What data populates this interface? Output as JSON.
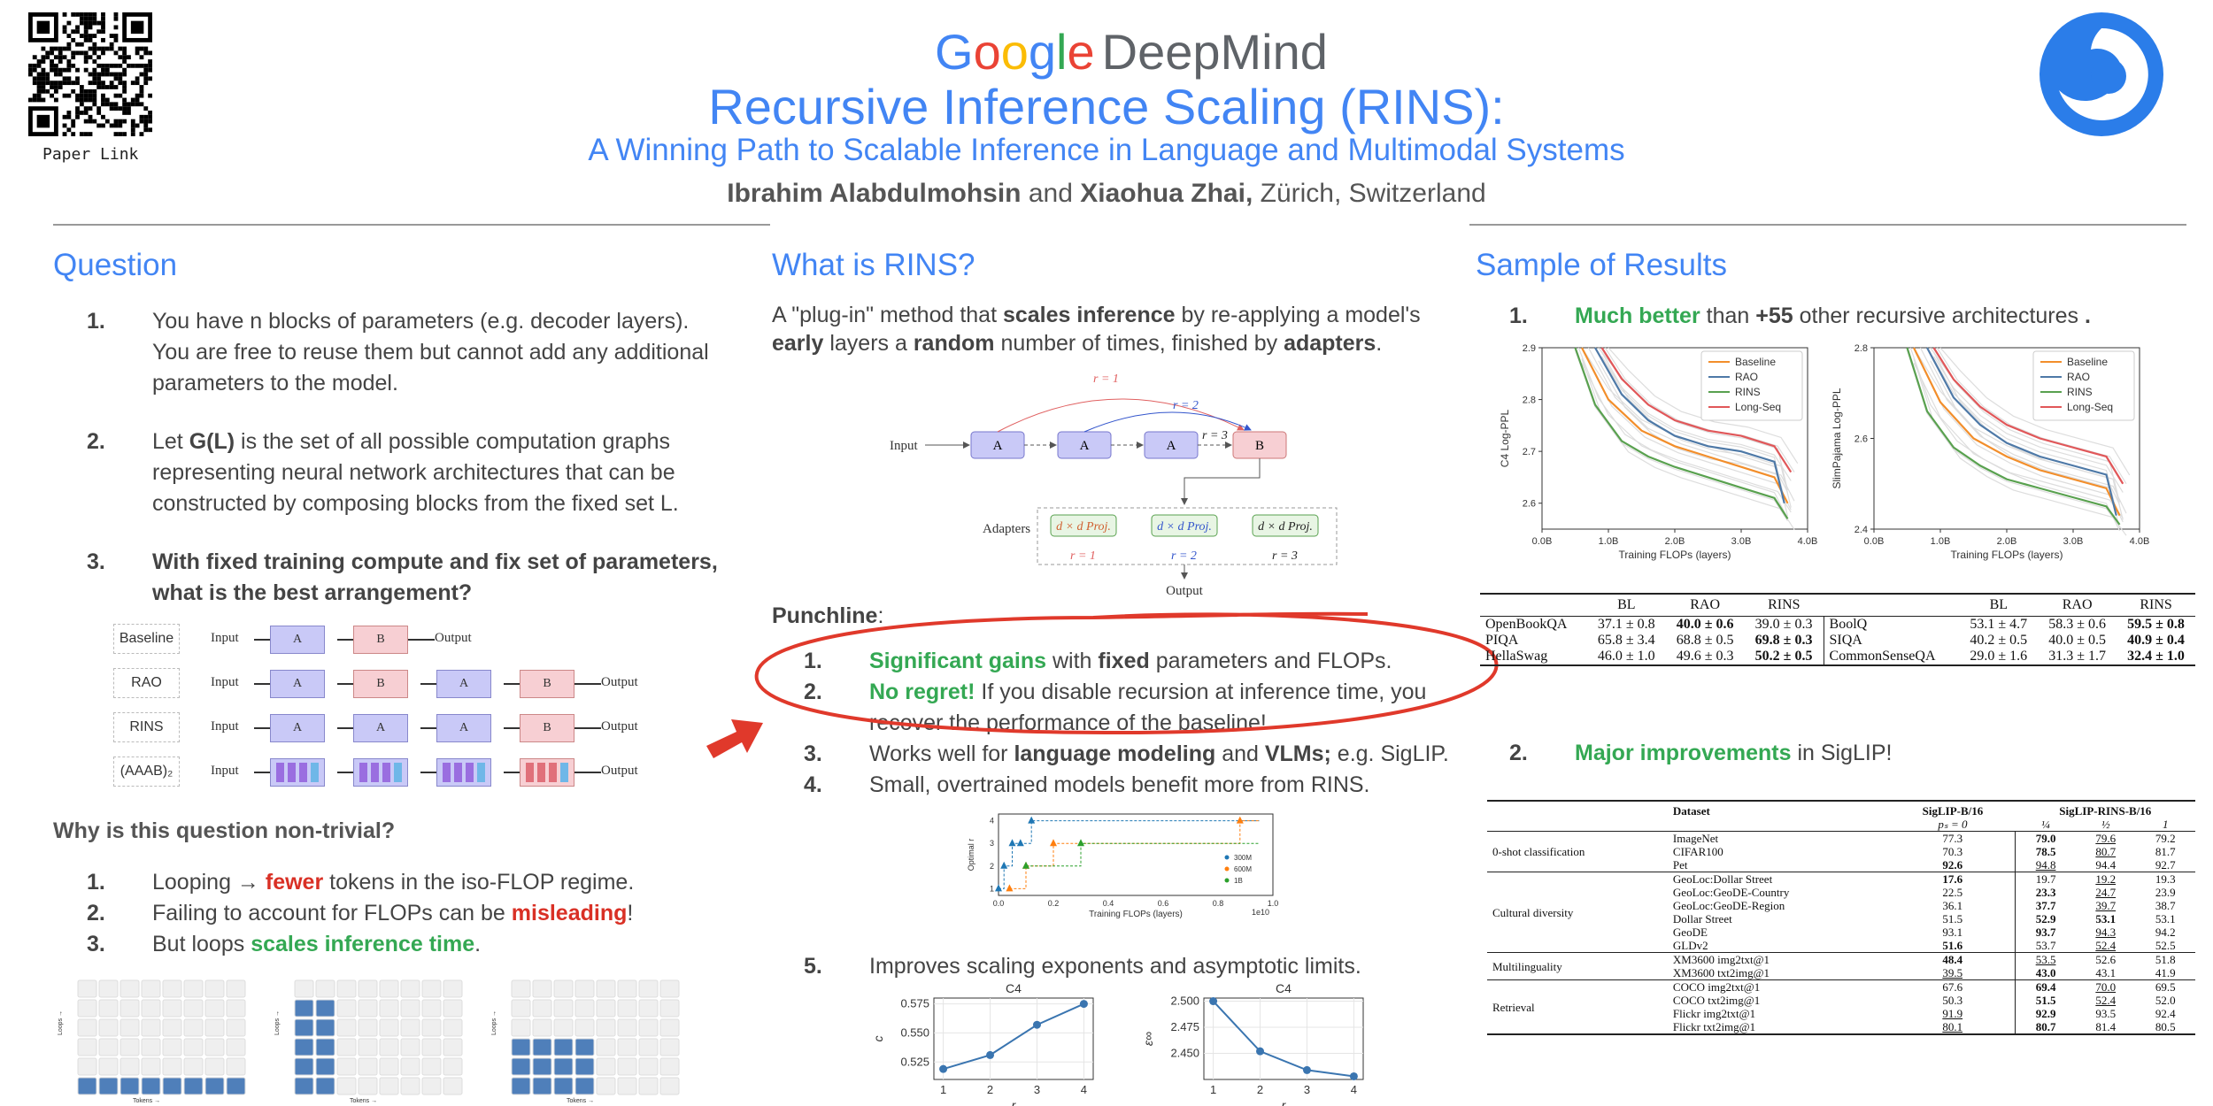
{
  "header": {
    "logo_google": [
      "G",
      "o",
      "o",
      "g",
      "l",
      "e"
    ],
    "logo_google_colors": [
      "#4285f4",
      "#ea4335",
      "#fbbc05",
      "#4285f4",
      "#34a853",
      "#ea4335"
    ],
    "logo_deepmind": "DeepMind",
    "title": "Recursive Inference Scaling (RINS):",
    "subtitle": "A Winning Path to Scalable Inference in Language and Multimodal Systems",
    "author1": "Ibrahim Alabdulmohsin",
    "and": " and ",
    "author2": "Xiaohua Zhai,",
    "location": " Zürich, Switzerland",
    "qr_label": "Paper Link"
  },
  "question": {
    "heading": "Question",
    "items": [
      {
        "n": "1.",
        "text": "You have n blocks of parameters (e.g. decoder layers). You are free to reuse them but cannot add any additional parameters to the model."
      },
      {
        "n": "2.",
        "pre": "Let ",
        "bold": "G(L)",
        "post": " is the set of all possible computation graphs representing neural network architectures that can be constructed by composing blocks from the fixed set L."
      },
      {
        "n": "3.",
        "bold": "With fixed training compute and fix set of parameters, what is the best arrangement?"
      }
    ],
    "arch_rows": [
      {
        "label": "Baseline",
        "input": "Input",
        "blocks": [
          "A",
          "B"
        ],
        "output": "Output"
      },
      {
        "label": "RAO",
        "input": "Input",
        "blocks": [
          "A",
          "B",
          "A",
          "B"
        ],
        "output": "Output"
      },
      {
        "label": "RINS",
        "input": "Input",
        "blocks": [
          "A",
          "A",
          "A",
          "B"
        ],
        "output": "Output"
      },
      {
        "label": "(AAAB)₂",
        "input": "Input",
        "blocks": [
          "AAAA",
          "AAAA",
          "AAAA",
          "BBBB"
        ],
        "output": "Output"
      }
    ],
    "why_heading": "Why is this question non-trivial?",
    "why_items": [
      {
        "n": "1.",
        "pre": "Looping → ",
        "red": "fewer",
        "post": " tokens in the iso-FLOP regime."
      },
      {
        "n": "2.",
        "pre": "Failing to account for FLOPs can be ",
        "red": "misleading",
        "post": "!"
      },
      {
        "n": "3.",
        "pre": "But loops ",
        "green": "scales inference time",
        "post": "."
      }
    ],
    "grid_axis_y": "Loops →",
    "grid_axis_x": "Tokens →"
  },
  "rins": {
    "heading": "What is RINS?",
    "intro_parts": [
      "A \"plug-in\" method that ",
      "scales inference",
      " by re-applying a model's ",
      "early",
      " layers a ",
      "random",
      " number of times, finished by ",
      "adapters",
      "."
    ],
    "diagram": {
      "input": "Input",
      "output": "Output",
      "adapters": "Adapters",
      "r1": "r = 1",
      "r2": "r = 2",
      "r3": "r = 3",
      "proj": "d × d Proj.",
      "blockA": "A",
      "blockB": "B"
    },
    "punchline": "Punchline",
    "items": [
      {
        "n": "1.",
        "parts": [
          {
            "g": "Significant gains"
          },
          {
            "t": " with "
          },
          {
            "b": "fixed"
          },
          {
            "t": " parameters and FLOPs."
          }
        ]
      },
      {
        "n": "2.",
        "parts": [
          {
            "g": "No regret!"
          },
          {
            "t": " If you disable recursion at inference time, you recover the performance of the baseline!"
          }
        ]
      },
      {
        "n": "3.",
        "parts": [
          {
            "t": "Works well for "
          },
          {
            "b": "language modeling"
          },
          {
            "t": " and "
          },
          {
            "b": "VLMs;"
          },
          {
            "t": " e.g. SigLIP."
          }
        ]
      },
      {
        "n": "4.",
        "parts": [
          {
            "t": "Small, overtrained models benefit more from RINS."
          }
        ]
      },
      {
        "n": "5.",
        "parts": [
          {
            "t": "Improves scaling exponents and asymptotic limits."
          }
        ]
      }
    ]
  },
  "results": {
    "heading": "Sample of Results",
    "item1": {
      "n": "1.",
      "g": "Much better",
      "t1": " than ",
      "b": "+55",
      "t2": " other recursive architectures ",
      "dot": "."
    },
    "item2": {
      "n": "2.",
      "g": "Major improvements",
      "t": " in SigLIP!"
    },
    "table1": {
      "headers": [
        "",
        "BL",
        "RAO",
        "RINS",
        "",
        "BL",
        "RAO",
        "RINS"
      ],
      "rows": [
        [
          "OpenBookQA",
          "37.1 ± 0.8",
          "40.0 ± 0.6",
          "39.0 ± 0.3",
          "BoolQ",
          "53.1 ± 4.7",
          "58.3 ± 0.6",
          "59.5 ± 0.8"
        ],
        [
          "PIQA",
          "65.8 ± 3.4",
          "68.8 ± 0.5",
          "69.8 ± 0.3",
          "SIQA",
          "40.2 ± 0.5",
          "40.0 ± 0.5",
          "40.9 ± 0.4"
        ],
        [
          "HellaSwag",
          "46.0 ± 1.0",
          "49.6 ± 0.3",
          "50.2 ± 0.5",
          "CommonSenseQA",
          "29.0 ± 1.6",
          "31.3 ± 1.7",
          "32.4 ± 1.0"
        ]
      ],
      "bold": [
        [
          0,
          2
        ],
        [
          1,
          3
        ],
        [
          2,
          3
        ],
        [
          0,
          7
        ],
        [
          1,
          7
        ],
        [
          2,
          7
        ]
      ]
    },
    "table2": {
      "h_dataset": "Dataset",
      "h_base": "SigLIP-B/16",
      "h_rins": "SigLIP-RINS-B/16",
      "sub_base": "pₛ = 0",
      "sub": [
        "¼",
        "½",
        "1"
      ],
      "groups": [
        {
          "name": "0-shot classification",
          "rows": [
            [
              "ImageNet",
              "77.3",
              "79.0",
              "79.6",
              "79.2"
            ],
            [
              "CIFAR100",
              "70.3",
              "78.5",
              "80.7",
              "81.7"
            ],
            [
              "Pet",
              "92.6",
              "94.8",
              "94.4",
              "92.7"
            ]
          ]
        },
        {
          "name": "Cultural diversity",
          "rows": [
            [
              "GeoLoc:Dollar Street",
              "17.6",
              "19.7",
              "19.2",
              "19.3"
            ],
            [
              "GeoLoc:GeoDE-Country",
              "22.5",
              "23.3",
              "24.7",
              "23.9"
            ],
            [
              "GeoLoc:GeoDE-Region",
              "36.1",
              "37.7",
              "39.7",
              "38.7"
            ],
            [
              "Dollar Street",
              "51.5",
              "52.9",
              "53.1",
              "53.1"
            ],
            [
              "GeoDE",
              "93.1",
              "93.7",
              "94.3",
              "94.2"
            ],
            [
              "GLDv2",
              "51.6",
              "53.7",
              "52.4",
              "52.5"
            ]
          ]
        },
        {
          "name": "Multilinguality",
          "rows": [
            [
              "XM3600 img2txt@1",
              "48.4",
              "53.5",
              "52.6",
              "51.8"
            ],
            [
              "XM3600 txt2img@1",
              "39.5",
              "43.0",
              "43.1",
              "41.9"
            ]
          ]
        },
        {
          "name": "Retrieval",
          "rows": [
            [
              "COCO img2txt@1",
              "67.6",
              "69.4",
              "70.0",
              "69.5"
            ],
            [
              "COCO txt2img@1",
              "50.3",
              "51.5",
              "52.4",
              "52.0"
            ],
            [
              "Flickr img2txt@1",
              "91.9",
              "92.9",
              "93.5",
              "92.4"
            ],
            [
              "Flickr txt2img@1",
              "80.1",
              "80.7",
              "81.4",
              "80.5"
            ]
          ]
        }
      ]
    }
  },
  "colors": {
    "blue": "#4285f4",
    "green": "#34a853",
    "red": "#d93025",
    "blockA": "#c9c9f7",
    "blockB": "#f7cfd3",
    "baseline": "#f28e2b",
    "rao": "#4e79a7",
    "rins": "#59a14f",
    "longseq": "#e15759"
  },
  "chart_data": [
    {
      "type": "line",
      "title": "",
      "xlabel": "Training FLOPs (layers)",
      "ylabel": "C4 Log-PPL",
      "xlim": [
        0,
        4
      ],
      "ylim": [
        2.55,
        2.9
      ],
      "x_ticks": [
        "0.0B",
        "1.0B",
        "2.0B",
        "3.0B",
        "4.0B"
      ],
      "y_ticks": [
        "2.6",
        "2.7",
        "2.8",
        "2.9"
      ],
      "legend": "top-right",
      "series": [
        {
          "name": "Baseline",
          "x": [
            0.6,
            1.0,
            1.5,
            2.0,
            2.5,
            3.0,
            3.5,
            3.7
          ],
          "y": [
            2.9,
            2.8,
            2.74,
            2.71,
            2.69,
            2.67,
            2.65,
            2.6
          ]
        },
        {
          "name": "RAO",
          "x": [
            0.8,
            1.2,
            1.6,
            2.0,
            2.5,
            3.0,
            3.5,
            3.65
          ],
          "y": [
            2.9,
            2.81,
            2.76,
            2.73,
            2.71,
            2.7,
            2.68,
            2.6
          ]
        },
        {
          "name": "RINS",
          "x": [
            0.5,
            0.8,
            1.2,
            1.6,
            2.0,
            2.5,
            3.0,
            3.5,
            3.7
          ],
          "y": [
            2.9,
            2.79,
            2.72,
            2.69,
            2.67,
            2.65,
            2.63,
            2.61,
            2.57
          ]
        },
        {
          "name": "Long-Seq",
          "x": [
            0.9,
            1.2,
            1.6,
            2.0,
            2.5,
            3.0,
            3.5,
            3.75
          ],
          "y": [
            2.9,
            2.84,
            2.79,
            2.76,
            2.74,
            2.73,
            2.71,
            2.66
          ]
        }
      ]
    },
    {
      "type": "line",
      "title": "",
      "xlabel": "Training FLOPs (layers)",
      "ylabel": "SlimPajama Log-PPL",
      "xlim": [
        0,
        4
      ],
      "ylim": [
        2.4,
        2.8
      ],
      "x_ticks": [
        "0.0B",
        "1.0B",
        "2.0B",
        "3.0B",
        "4.0B"
      ],
      "y_ticks": [
        "2.4",
        "2.6",
        "2.8"
      ],
      "legend": "top-right",
      "series": [
        {
          "name": "Baseline",
          "x": [
            0.6,
            1.0,
            1.5,
            2.0,
            2.5,
            3.0,
            3.5,
            3.7
          ],
          "y": [
            2.8,
            2.68,
            2.6,
            2.56,
            2.53,
            2.51,
            2.49,
            2.43
          ]
        },
        {
          "name": "RAO",
          "x": [
            0.8,
            1.2,
            1.6,
            2.0,
            2.5,
            3.0,
            3.5,
            3.65
          ],
          "y": [
            2.8,
            2.69,
            2.63,
            2.59,
            2.56,
            2.54,
            2.52,
            2.43
          ]
        },
        {
          "name": "RINS",
          "x": [
            0.5,
            0.8,
            1.2,
            1.6,
            2.0,
            2.5,
            3.0,
            3.5,
            3.7
          ],
          "y": [
            2.8,
            2.66,
            2.58,
            2.54,
            2.51,
            2.49,
            2.47,
            2.45,
            2.41
          ]
        },
        {
          "name": "Long-Seq",
          "x": [
            0.9,
            1.2,
            1.6,
            2.0,
            2.5,
            3.0,
            3.5,
            3.75
          ],
          "y": [
            2.8,
            2.73,
            2.67,
            2.63,
            2.6,
            2.58,
            2.56,
            2.5
          ]
        }
      ]
    },
    {
      "type": "scatter",
      "title": "",
      "xlabel": "Training FLOPs (layers)",
      "ylabel": "Optimal r",
      "xlim": [
        0,
        1.0
      ],
      "ylim": [
        1,
        4
      ],
      "x_ticks": [
        "0.0",
        "0.2",
        "0.4",
        "0.6",
        "0.8",
        "1.0"
      ],
      "x_exp": "1e10",
      "legend": "bottom-right",
      "series": [
        {
          "name": "300M",
          "x": [
            0.0,
            0.02,
            0.05,
            0.08,
            0.12
          ],
          "y": [
            1,
            2,
            3,
            3,
            4
          ]
        },
        {
          "name": "600M",
          "x": [
            0.04,
            0.1,
            0.2,
            0.88
          ],
          "y": [
            1,
            2,
            3,
            4
          ]
        },
        {
          "name": "1B",
          "x": [
            0.1,
            0.3
          ],
          "y": [
            2,
            3
          ]
        }
      ]
    },
    {
      "type": "line",
      "title": "C4",
      "xlabel": "r",
      "ylabel": "c",
      "x": [
        1,
        2,
        3,
        4
      ],
      "values": [
        0.519,
        0.531,
        0.557,
        0.575
      ],
      "ylim": [
        0.51,
        0.58
      ],
      "y_ticks": [
        "0.525",
        "0.550",
        "0.575"
      ],
      "x_ticks": [
        "1",
        "2",
        "3",
        "4"
      ]
    },
    {
      "type": "line",
      "title": "C4",
      "xlabel": "r",
      "ylabel": "ε∞",
      "x": [
        1,
        2,
        3,
        4
      ],
      "values": [
        2.5,
        2.452,
        2.434,
        2.428
      ],
      "ylim": [
        2.425,
        2.503
      ],
      "y_ticks": [
        "2.450",
        "2.475",
        "2.500"
      ],
      "x_ticks": [
        "1",
        "2",
        "3",
        "4"
      ]
    }
  ]
}
